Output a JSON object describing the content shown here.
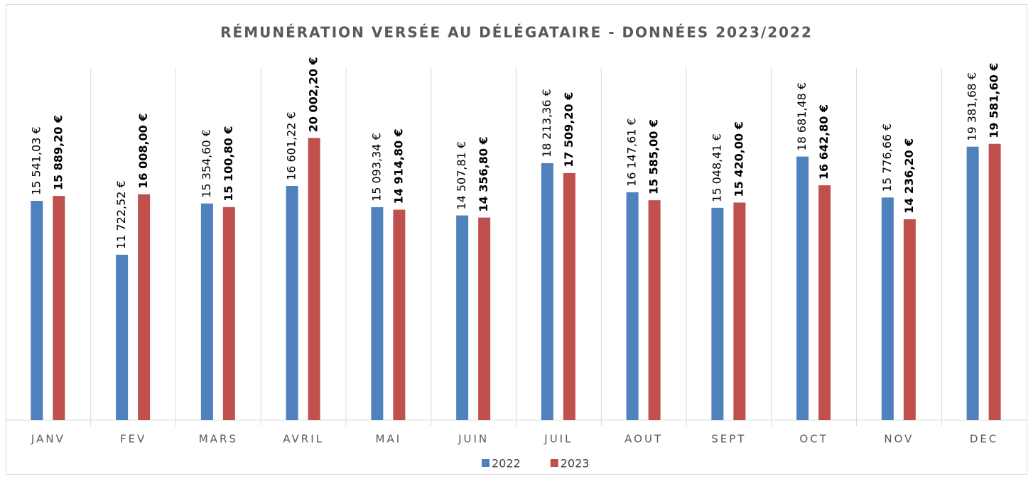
{
  "chart_data": {
    "type": "bar",
    "title": "RÉMUNÉRATION VERSÉE AU DÉLÉGATAIRE - DONNÉES 2023/2022",
    "categories": [
      "JANV",
      "FEV",
      "MARS",
      "AVRIL",
      "MAI",
      "JUIN",
      "JUIL",
      "AOUT",
      "SEPT",
      "OCT",
      "NOV",
      "DEC"
    ],
    "series": [
      {
        "name": "2022",
        "color": "#4f81bd",
        "values": [
          15541.03,
          11722.52,
          15354.6,
          16601.22,
          15093.34,
          14507.81,
          18213.36,
          16147.61,
          15048.41,
          18681.48,
          15776.66,
          19381.68
        ],
        "value_labels": [
          "15 541,03 €",
          "11 722,52 €",
          "15 354,60 €",
          "16 601,22 €",
          "15 093,34 €",
          "14 507,81 €",
          "18 213,36 €",
          "16 147,61 €",
          "15 048,41 €",
          "18 681,48 €",
          "15 776,66 €",
          "19 381,68 €"
        ]
      },
      {
        "name": "2023",
        "color": "#c0504d",
        "values": [
          15889.2,
          16008.0,
          15100.8,
          20002.2,
          14914.8,
          14356.8,
          17509.2,
          15585.0,
          15420.0,
          16642.8,
          14236.2,
          19581.6
        ],
        "value_labels": [
          "15 889,20 €",
          "16 008,00 €",
          "15 100,80 €",
          "20 002,20 €",
          "14 914,80 €",
          "14 356,80 €",
          "17 509,20 €",
          "15 585,00 €",
          "15 420,00 €",
          "16 642,80 €",
          "14 236,20 €",
          "19 581,60 €"
        ]
      }
    ],
    "ylim": [
      0,
      25000
    ]
  }
}
